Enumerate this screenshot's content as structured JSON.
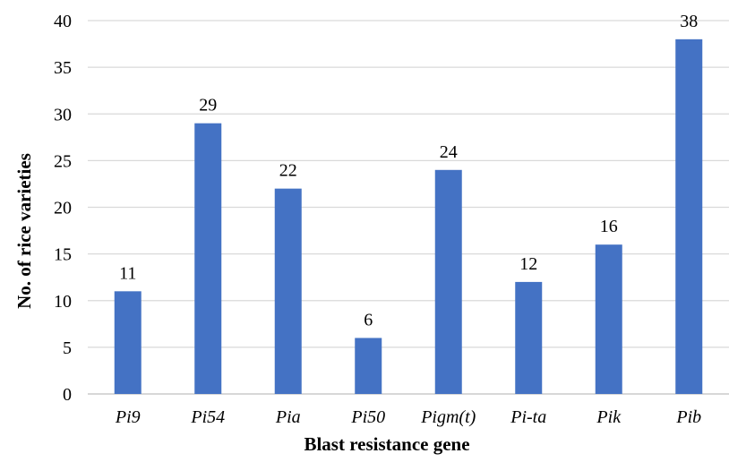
{
  "chart_data": {
    "type": "bar",
    "title": "",
    "xlabel": "Blast resistance gene",
    "ylabel": "No. of rice varieties",
    "categories": [
      "Pi9",
      "Pi54",
      "Pia",
      "Pi50",
      "Pigm(t)",
      "Pi-ta",
      "Pik",
      "Pib"
    ],
    "values": [
      11,
      29,
      22,
      6,
      24,
      12,
      16,
      38
    ],
    "ylim": [
      0,
      40
    ],
    "yticks": [
      0,
      5,
      10,
      15,
      20,
      25,
      30,
      35,
      40
    ],
    "grid": "horizontal",
    "legend": "none",
    "data_labels": true,
    "bar_color": "#4472c4"
  }
}
